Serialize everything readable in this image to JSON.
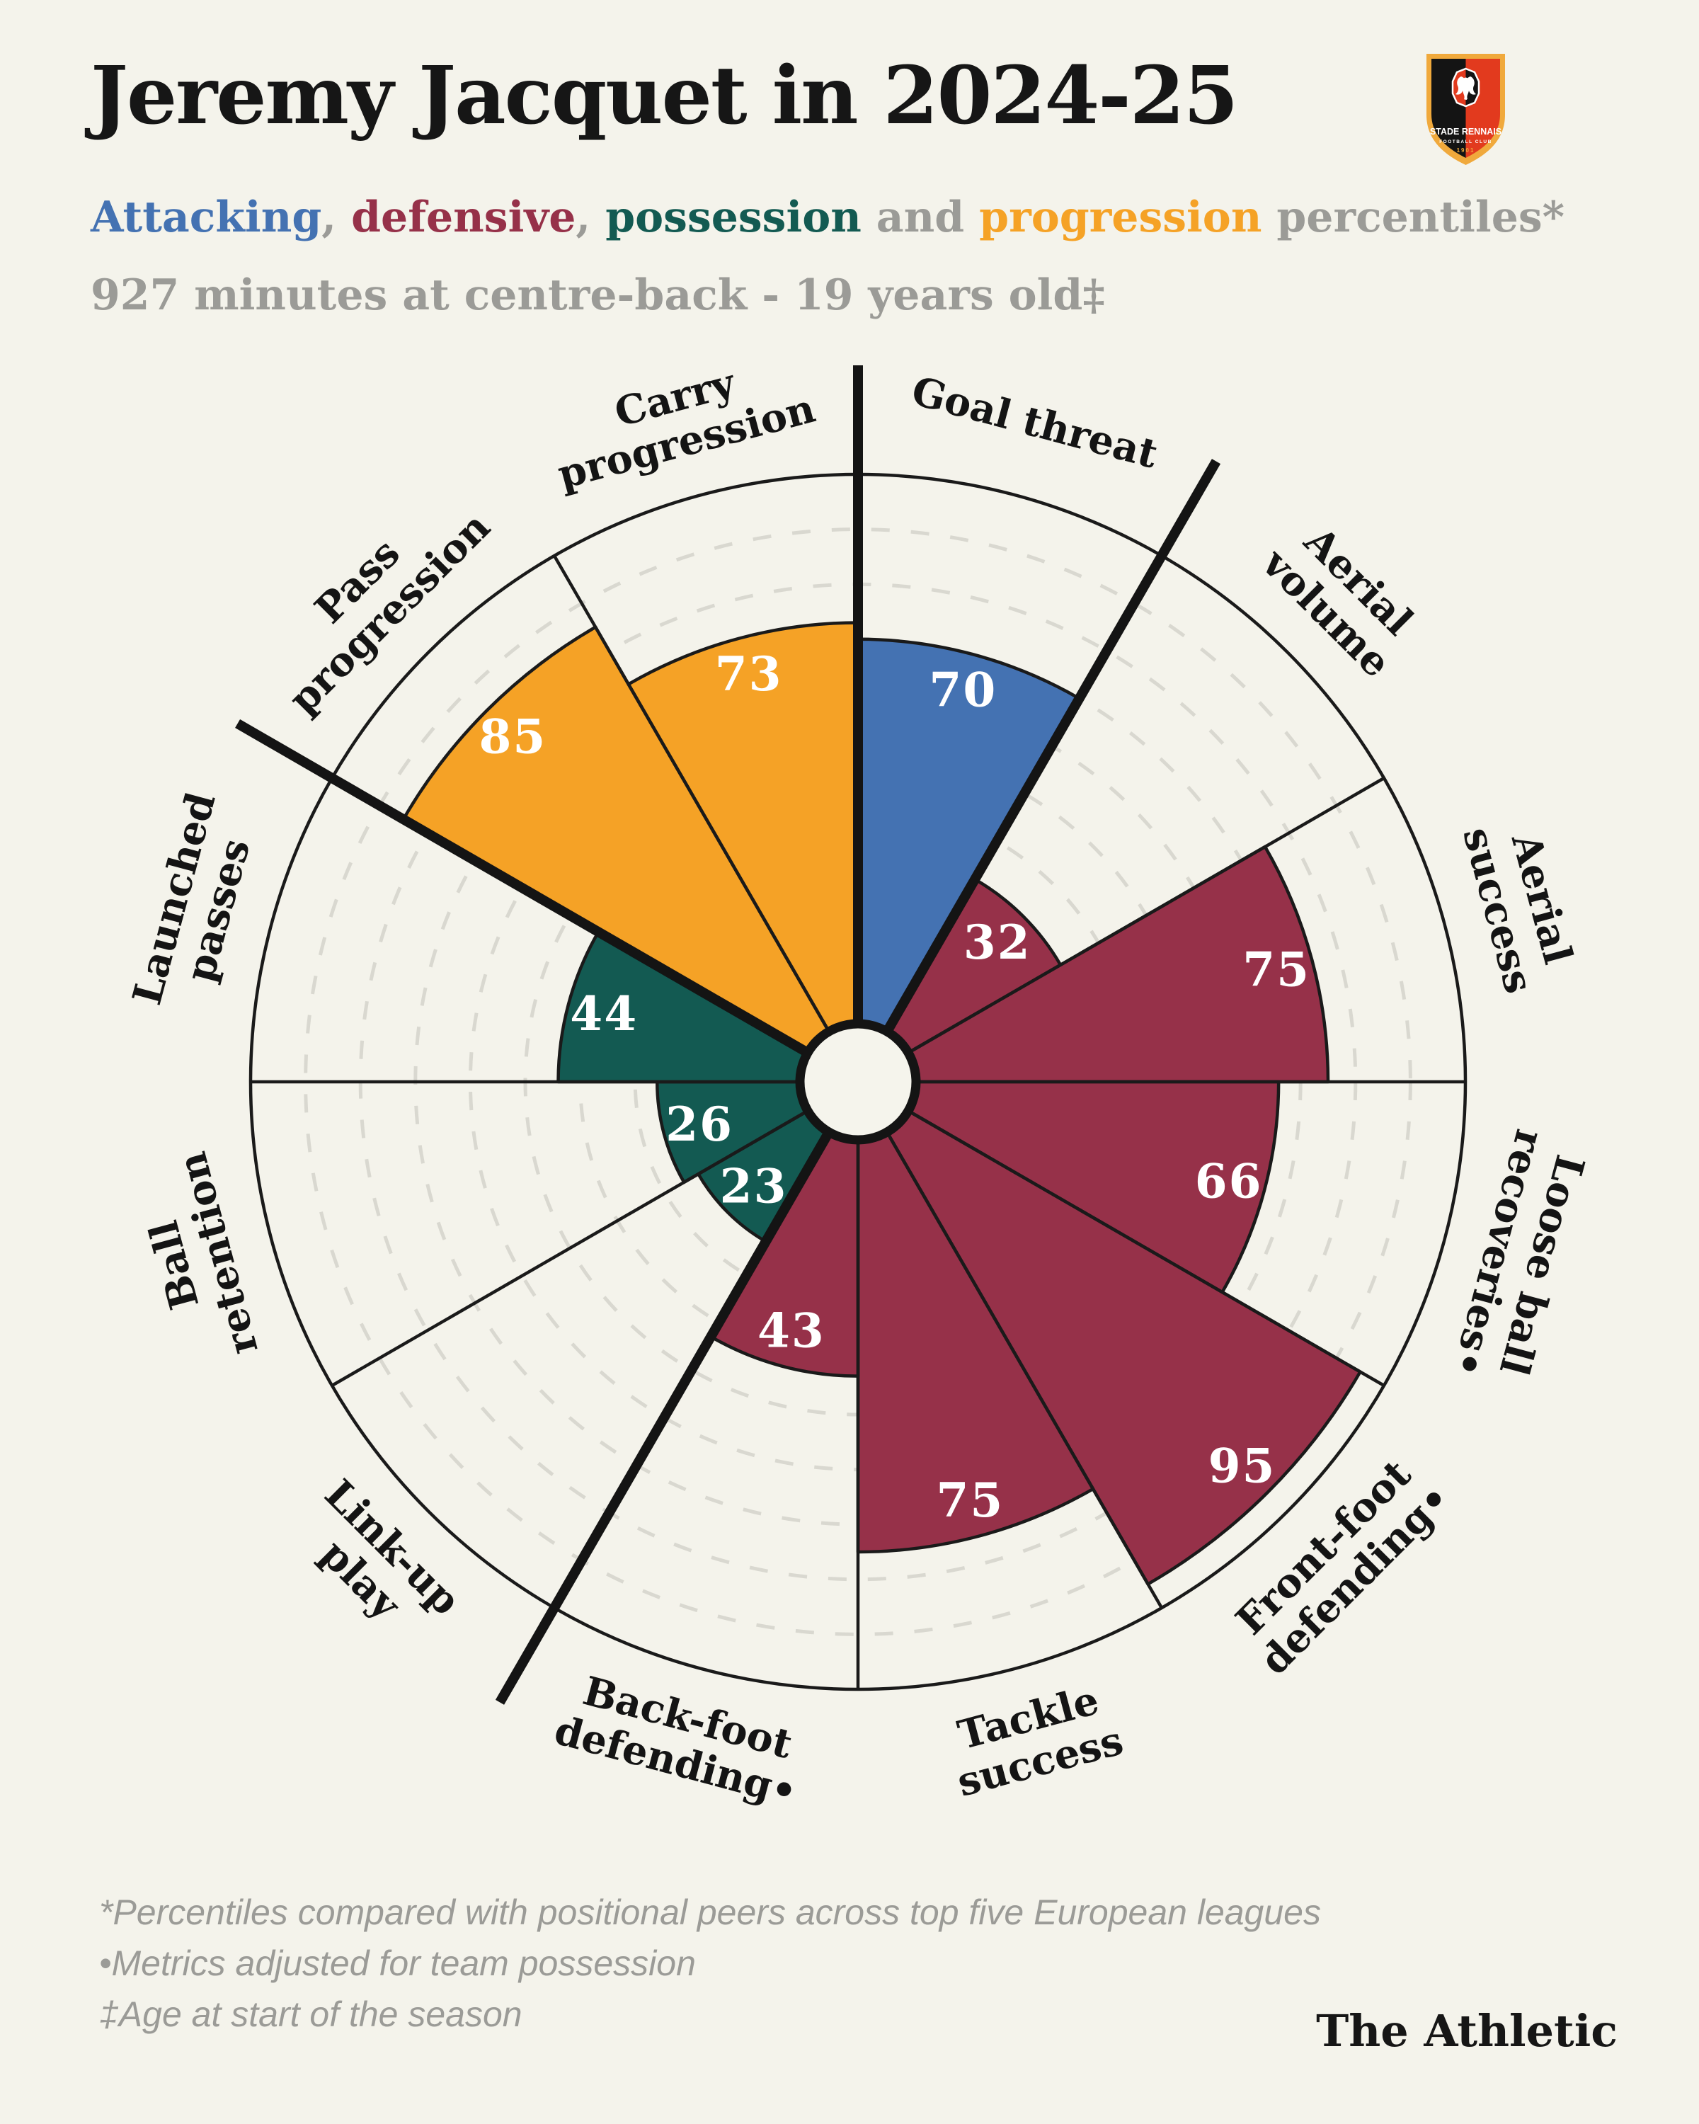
{
  "header": {
    "title": "Jeremy Jacquet in 2024-25",
    "subtitle_segments": [
      {
        "text": "Attacking",
        "color": "attacking"
      },
      {
        "text": ", ",
        "color": "muted"
      },
      {
        "text": "defensive",
        "color": "defensive"
      },
      {
        "text": ", ",
        "color": "muted"
      },
      {
        "text": "possession",
        "color": "possession"
      },
      {
        "text": " and ",
        "color": "muted"
      },
      {
        "text": "progression",
        "color": "progression"
      },
      {
        "text": " percentiles*",
        "color": "muted"
      }
    ],
    "meta": "927 minutes at centre-back - 19 years old‡"
  },
  "club_badge": {
    "club_line1": "STADE RENNAIS",
    "club_line2": "FOOTBALL CLUB",
    "year": "1901"
  },
  "colors": {
    "attacking": "#4472B2",
    "defensive": "#963149",
    "possession": "#135A52",
    "progression": "#F5A226",
    "muted": "#9B9B97",
    "ink": "#161616",
    "background": "#F4F3EB",
    "gridline": "#D9D8D0",
    "value_text": "#FFFFFF"
  },
  "chart_data": {
    "type": "pie",
    "subtype": "pizza-percentile-polar-bar",
    "scale_min": 0,
    "scale_max": 100,
    "gridline_step": 10,
    "grid_on": true,
    "slice_angle_deg": 30,
    "start_at_12_oclock": true,
    "clockwise": true,
    "group_boundary_angles_deg": [
      0,
      30,
      210,
      300
    ],
    "legend_position": "subtitle-inline",
    "groups": {
      "attacking": {
        "label": "Attacking",
        "color": "#4472B2"
      },
      "defensive": {
        "label": "defensive",
        "color": "#963149"
      },
      "possession": {
        "label": "possession",
        "color": "#135A52"
      },
      "progression": {
        "label": "progression",
        "color": "#F5A226"
      }
    },
    "categories": [
      "Goal threat",
      "Aerial volume",
      "Aerial success",
      "Loose ball recoveries•",
      "Front-foot defending•",
      "Tackle success",
      "Back-foot defending•",
      "Link-up play",
      "Ball retention",
      "Launched passes",
      "Pass progression",
      "Carry progression"
    ],
    "values": [
      70,
      32,
      75,
      66,
      95,
      75,
      43,
      23,
      26,
      44,
      85,
      73
    ],
    "slices": [
      {
        "name": "Goal threat",
        "lines": [
          "Goal threat"
        ],
        "value": 70,
        "group": "attacking"
      },
      {
        "name": "Aerial volume",
        "lines": [
          "Aerial",
          "volume"
        ],
        "value": 32,
        "group": "defensive"
      },
      {
        "name": "Aerial success",
        "lines": [
          "Aerial",
          "success"
        ],
        "value": 75,
        "group": "defensive"
      },
      {
        "name": "Loose ball recoveries•",
        "lines": [
          "Loose ball",
          "recoveries•"
        ],
        "value": 66,
        "group": "defensive"
      },
      {
        "name": "Front-foot defending•",
        "lines": [
          "Front-foot",
          "defending•"
        ],
        "value": 95,
        "group": "defensive"
      },
      {
        "name": "Tackle success",
        "lines": [
          "Tackle",
          "success"
        ],
        "value": 75,
        "group": "defensive"
      },
      {
        "name": "Back-foot defending•",
        "lines": [
          "Back-foot",
          "defending•"
        ],
        "value": 43,
        "group": "defensive"
      },
      {
        "name": "Link-up play",
        "lines": [
          "Link-up",
          "play"
        ],
        "value": 23,
        "group": "possession"
      },
      {
        "name": "Ball retention",
        "lines": [
          "Ball",
          "retention"
        ],
        "value": 26,
        "group": "possession"
      },
      {
        "name": "Launched passes",
        "lines": [
          "Launched",
          "passes"
        ],
        "value": 44,
        "group": "possession"
      },
      {
        "name": "Pass progression",
        "lines": [
          "Pass",
          "progression"
        ],
        "value": 85,
        "group": "progression"
      },
      {
        "name": "Carry progression",
        "lines": [
          "Carry",
          "progression"
        ],
        "value": 73,
        "group": "progression"
      }
    ]
  },
  "footnotes": [
    "*Percentiles compared with positional peers across top five European leagues",
    "•Metrics adjusted for team possession",
    "‡Age at start of the season"
  ],
  "credit": "The Athletic"
}
